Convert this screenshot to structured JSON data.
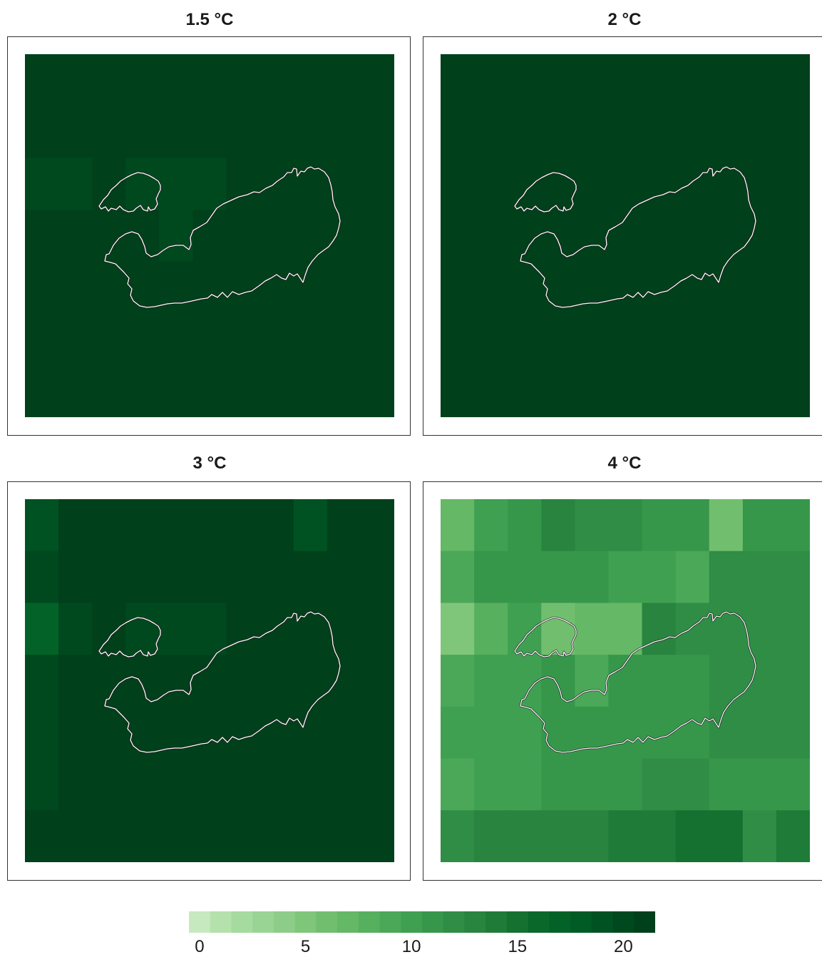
{
  "panels": [
    {
      "title": "1.5 °C",
      "grid": [
        [
          21.4,
          21.4,
          21.4,
          21.4,
          21.4,
          21.4,
          21.4,
          21.4,
          20.6,
          21.4,
          21.4
        ],
        [
          21.4,
          21.4,
          21.4,
          21.4,
          21.4,
          21.4,
          21.4,
          20.6,
          21.4,
          21.4,
          21.4
        ],
        [
          20.2,
          20.2,
          21.0,
          20.2,
          20.2,
          20.2,
          21.0,
          21.0,
          21.0,
          21.0,
          21.0
        ],
        [
          21.0,
          21.0,
          21.0,
          21.0,
          20.2,
          21.0,
          21.0,
          21.0,
          21.0,
          21.0,
          21.0
        ],
        [
          21.0,
          21.0,
          21.0,
          21.0,
          21.0,
          21.0,
          21.0,
          21.0,
          21.0,
          21.0,
          21.0
        ],
        [
          21.0,
          21.0,
          21.0,
          21.0,
          21.0,
          21.0,
          21.0,
          21.0,
          21.0,
          21.0,
          21.0
        ],
        [
          21.0,
          21.0,
          21.0,
          21.0,
          21.0,
          21.0,
          21.0,
          21.0,
          21.0,
          21.0,
          21.0
        ]
      ]
    },
    {
      "title": "2 °C",
      "grid": [
        [
          21.0,
          21.0,
          21.0,
          21.0,
          21.0,
          21.0,
          21.0,
          21.0,
          21.0,
          21.0,
          21.0
        ],
        [
          21.0,
          21.0,
          21.0,
          21.0,
          21.0,
          21.0,
          21.0,
          21.0,
          21.0,
          21.0,
          21.0
        ],
        [
          21.0,
          21.0,
          21.0,
          21.0,
          21.0,
          21.0,
          21.0,
          21.0,
          21.0,
          21.0,
          21.0
        ],
        [
          21.0,
          21.0,
          21.0,
          21.0,
          21.0,
          21.0,
          21.0,
          21.0,
          21.0,
          21.0,
          21.0
        ],
        [
          21.0,
          21.0,
          21.0,
          21.0,
          21.0,
          21.0,
          21.0,
          21.0,
          21.0,
          21.0,
          21.0
        ],
        [
          21.0,
          21.0,
          21.0,
          21.0,
          21.0,
          21.0,
          21.0,
          21.0,
          21.0,
          21.0,
          21.0
        ],
        [
          21.6,
          21.6,
          21.6,
          21.6,
          21.6,
          21.6,
          21.6,
          21.6,
          21.6,
          21.6,
          21.6
        ]
      ]
    },
    {
      "title": "3 °C",
      "grid": [
        [
          19.0,
          21.0,
          21.0,
          21.0,
          21.0,
          21.0,
          21.0,
          21.0,
          19.0,
          21.0,
          21.0
        ],
        [
          20.0,
          21.0,
          21.0,
          21.0,
          21.0,
          21.0,
          21.0,
          21.0,
          21.0,
          21.0,
          21.0
        ],
        [
          17.0,
          20.0,
          21.0,
          19.5,
          20.2,
          20.2,
          21.0,
          21.0,
          21.0,
          21.0,
          21.0
        ],
        [
          20.4,
          21.0,
          21.0,
          21.0,
          21.0,
          21.0,
          21.0,
          21.0,
          21.0,
          21.0,
          21.0
        ],
        [
          20.4,
          21.0,
          21.0,
          21.0,
          21.0,
          21.0,
          21.0,
          21.0,
          21.0,
          21.0,
          21.0
        ],
        [
          20.4,
          21.0,
          21.0,
          21.0,
          21.0,
          21.0,
          21.0,
          21.0,
          21.0,
          21.0,
          21.0
        ],
        [
          21.4,
          21.4,
          21.4,
          21.4,
          21.4,
          21.4,
          21.8,
          21.8,
          21.8,
          21.4,
          22.0
        ]
      ]
    },
    {
      "title": "4 °C",
      "grid": [
        [
          7.0,
          9.5,
          11.0,
          13.0,
          12.0,
          12.0,
          10.5,
          10.5,
          6.0,
          10.5,
          10.5
        ],
        [
          8.5,
          11.0,
          11.0,
          11.0,
          11.0,
          10.0,
          10.0,
          8.5,
          12.0,
          12.0,
          12.0
        ],
        [
          4.5,
          7.5,
          10.0,
          5.5,
          7.0,
          7.0,
          13.0,
          12.0,
          12.0,
          12.0,
          12.0
        ],
        [
          8.5,
          10.0,
          10.0,
          11.0,
          9.0,
          10.5,
          10.5,
          11.0,
          12.0,
          12.0,
          12.0
        ],
        [
          9.5,
          10.0,
          10.0,
          11.0,
          11.0,
          10.5,
          10.5,
          11.0,
          12.0,
          12.0,
          12.0
        ],
        [
          8.5,
          10.0,
          10.0,
          10.5,
          10.5,
          10.5,
          12.0,
          12.0,
          11.0,
          10.5,
          10.5
        ],
        [
          11.5,
          13.0,
          13.0,
          13.0,
          13.0,
          14.0,
          14.0,
          15.0,
          15.0,
          12.0,
          14.0
        ]
      ]
    }
  ],
  "colorbar": {
    "min": -0.5,
    "max": 21.5,
    "ticks": [
      "0",
      "5",
      "10",
      "15",
      "20"
    ],
    "tick_values": [
      0,
      5,
      10,
      15,
      20
    ],
    "colors": [
      "#c7e9c0",
      "#b5e1ad",
      "#a5db9f",
      "#9ad494",
      "#8dcd89",
      "#7fc67b",
      "#71bf6e",
      "#64b866",
      "#57b05e",
      "#4aa858",
      "#3fa052",
      "#36974b",
      "#2f8d45",
      "#28843f",
      "#1f7b38",
      "#157130",
      "#0b682b",
      "#036228",
      "#005b25",
      "#005222",
      "#00491f",
      "#00401b"
    ]
  }
}
